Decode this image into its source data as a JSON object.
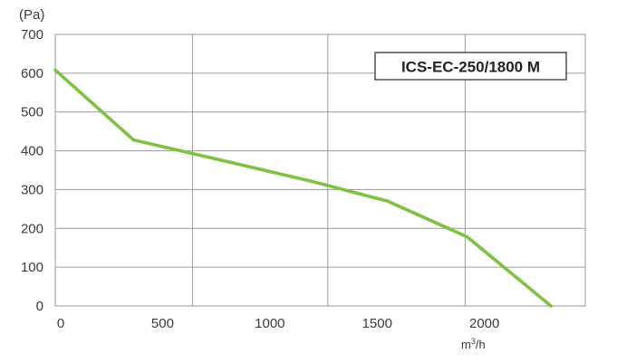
{
  "chart_data": {
    "type": "line",
    "title": "",
    "ylabel": "(Pa)",
    "xlabel_base": "m",
    "xlabel_sup": "3",
    "xlabel_tail": "/h",
    "xlim": [
      0,
      2470
    ],
    "ylim": [
      0,
      700
    ],
    "xticks": [
      0,
      500,
      1000,
      1500,
      2000
    ],
    "yticks": [
      0,
      100,
      200,
      300,
      400,
      500,
      600,
      700
    ],
    "x_grid": [
      0,
      640,
      1270,
      1910
    ],
    "grid": true,
    "legend_position": "top-right",
    "series": [
      {
        "name": "ICS-EC-250/1800 M",
        "color": "#7dc242",
        "x": [
          0,
          365,
          640,
          1190,
          1550,
          1920,
          2310
        ],
        "y": [
          608,
          428,
          393,
          322,
          270,
          178,
          0
        ]
      }
    ]
  }
}
